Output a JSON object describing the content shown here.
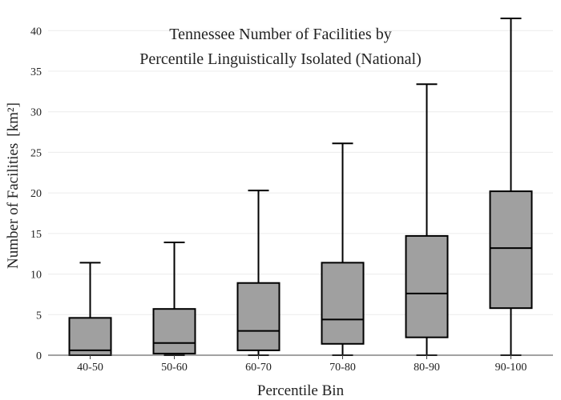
{
  "chart_data": {
    "type": "box",
    "title_lines": [
      "Tennessee Number of Facilities by",
      "Percentile Linguistically Isolated (National)"
    ],
    "xlabel": "Percentile Bin",
    "ylabel": "Number of Facilities",
    "ylabel_unit": "[km²]",
    "ylim": [
      0,
      41.8
    ],
    "yticks": [
      0,
      5,
      10,
      15,
      20,
      25,
      30,
      35,
      40
    ],
    "grid": true,
    "box_color": "#a0a0a0",
    "categories": [
      "40-50",
      "50-60",
      "60-70",
      "70-80",
      "80-90",
      "90-100"
    ],
    "boxes": [
      {
        "category": "40-50",
        "min": 0,
        "q1": 0,
        "median": 0.6,
        "q3": 4.6,
        "max": 11.4
      },
      {
        "category": "50-60",
        "min": 0,
        "q1": 0.2,
        "median": 1.5,
        "q3": 5.7,
        "max": 13.9
      },
      {
        "category": "60-70",
        "min": 0,
        "q1": 0.6,
        "median": 3.0,
        "q3": 8.9,
        "max": 20.3
      },
      {
        "category": "70-80",
        "min": 0,
        "q1": 1.4,
        "median": 4.4,
        "q3": 11.4,
        "max": 26.1
      },
      {
        "category": "80-90",
        "min": 0,
        "q1": 2.2,
        "median": 7.6,
        "q3": 14.7,
        "max": 33.4
      },
      {
        "category": "90-100",
        "min": 0,
        "q1": 5.8,
        "median": 13.2,
        "q3": 20.2,
        "max": 41.5
      }
    ]
  }
}
